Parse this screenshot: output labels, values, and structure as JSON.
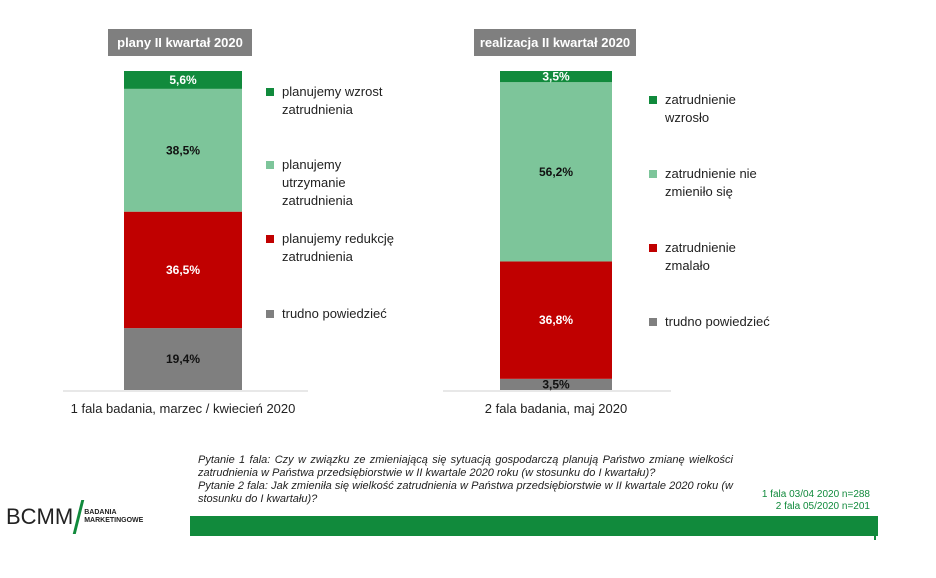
{
  "chart_data": [
    {
      "type": "bar",
      "stacked": true,
      "title": "plany II kwartał 2020",
      "categories": [
        "1 fala badania, marzec / kwiecień 2020"
      ],
      "series": [
        {
          "name": "trudno powiedzieć",
          "values": [
            19.4
          ],
          "label": "19,4%",
          "color": "#7f7f7f"
        },
        {
          "name": "planujemy redukcję zatrudnienia",
          "values": [
            36.5
          ],
          "label": "36,5%",
          "color": "#c00000"
        },
        {
          "name": "planujemy utrzymanie zatrudnienia",
          "values": [
            38.5
          ],
          "label": "38,5%",
          "color": "#7dc59a"
        },
        {
          "name": "planujemy wzrost zatrudnienia",
          "values": [
            5.6
          ],
          "label": "5,6%",
          "color": "#118a3c"
        }
      ],
      "ylim": [
        0,
        100
      ]
    },
    {
      "type": "bar",
      "stacked": true,
      "title": "realizacja II kwartał 2020",
      "categories": [
        "2 fala badania, maj 2020"
      ],
      "series": [
        {
          "name": "trudno powiedzieć",
          "values": [
            3.5
          ],
          "label": "3,5%",
          "color": "#7f7f7f"
        },
        {
          "name": "zatrudnienie zmalało",
          "values": [
            36.8
          ],
          "label": "36,8%",
          "color": "#c00000"
        },
        {
          "name": "zatrudnienie nie zmieniło się",
          "values": [
            56.2
          ],
          "label": "56,2%",
          "color": "#7dc59a"
        },
        {
          "name": "zatrudnienie wzrosło",
          "values": [
            3.5
          ],
          "label": "3,5%",
          "color": "#118a3c"
        }
      ],
      "ylim": [
        0,
        100
      ]
    }
  ],
  "question": "Pytanie 1 fala: Czy w związku ze zmieniającą się sytuacją gospodarczą planują Państwo zmianę wielkości zatrudnienia w Państwa przedsiębiorstwie w II kwartale 2020 roku (w stosunku do I kwartału)? Pytanie 2 fala: Jak zmieniła się wielkość zatrudnienia w Państwa przedsiębiorstwie w II kwartale 2020 roku (w stosunku do I kwartału)?",
  "question_parts": [
    "Pytanie 1 fala: Czy w związku ze zmieniającą się sytuacją gospodarczą planują Państwo zmianę wielkości zatrudnienia w Państwa przedsiębiorstwie w II kwartale 2020 roku (w stosunku do I kwartału)?",
    "Pytanie 2 fala: Jak zmieniła się wielkość zatrudnienia w Państwa przedsiębiorstwie w II kwartale 2020 roku (w stosunku do I kwartału)?"
  ],
  "sample": [
    "1 fala 03/04 2020 n=288",
    "2 fala 05/2020 n=201"
  ],
  "logo": {
    "main": "BCMM",
    "sub1": "BADANIA",
    "sub2": "MARKETINGOWE"
  },
  "colors": {
    "accent": "#118a3c"
  }
}
